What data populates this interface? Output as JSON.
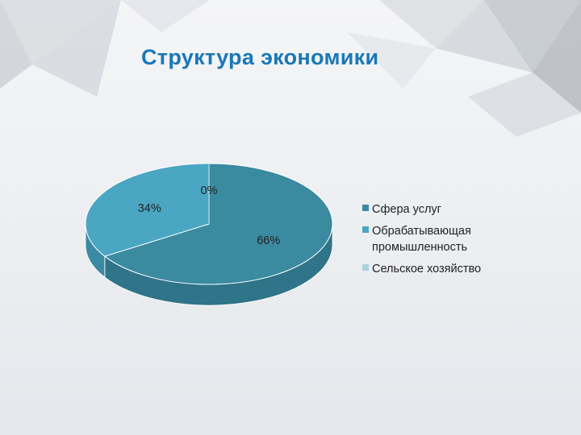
{
  "slide": {
    "title": "Структура экономики"
  },
  "colors": {
    "title": "#1a78b8",
    "series": [
      "#3a8aa0",
      "#4aa6c2",
      "#a9d3df"
    ],
    "series_side": [
      "#2f7488",
      "#3a8aa3",
      "#8fbcc9"
    ]
  },
  "chart_data": {
    "type": "pie",
    "style": "3d",
    "title": "",
    "categories": [
      "Сфера услуг",
      "Обрабатывающая промышленность",
      "Сельское хозяйство"
    ],
    "values": [
      66,
      34,
      0
    ],
    "unit": "%",
    "data_labels": [
      "66%",
      "34%",
      "0%"
    ],
    "legend_position": "right"
  }
}
